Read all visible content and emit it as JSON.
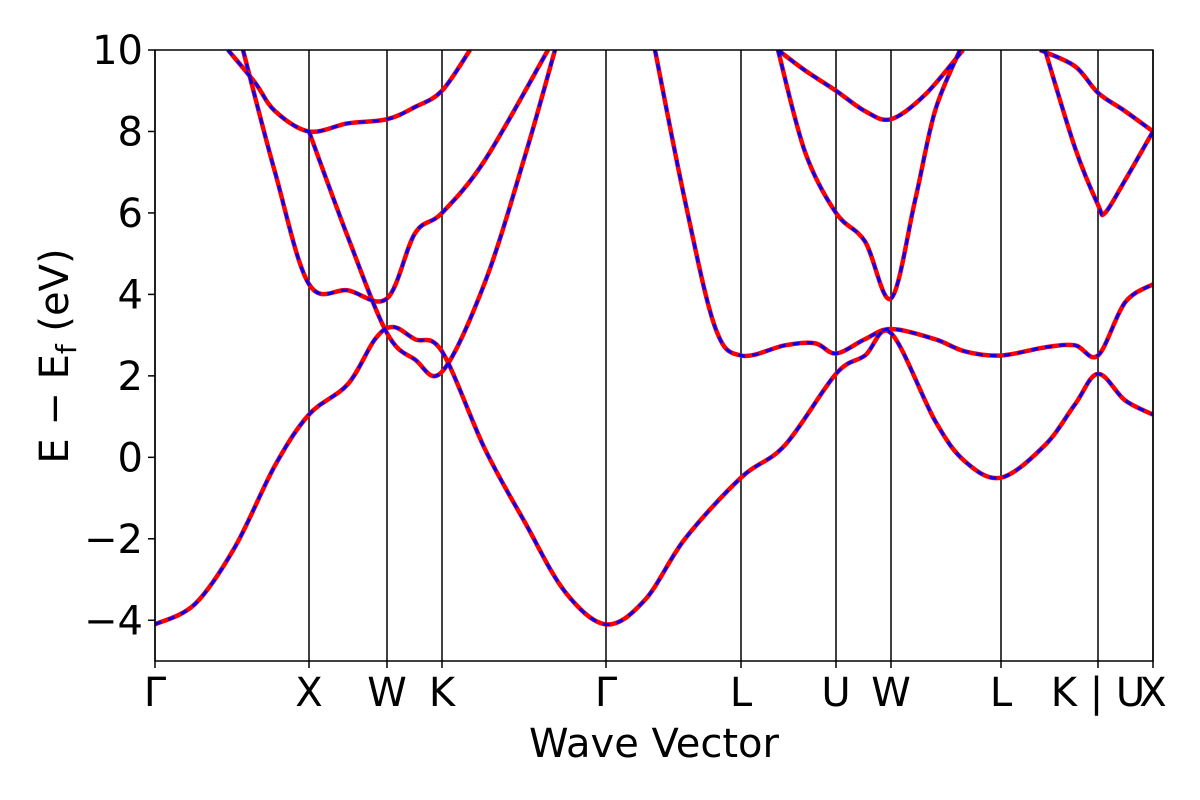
{
  "chart_data": {
    "type": "line",
    "xlabel": "Wave Vector",
    "ylabel": {
      "main": "E − E",
      "sub": "f",
      "unit": "(eV)"
    },
    "xlim": [
      0,
      9.98
    ],
    "ylim": [
      -5,
      10
    ],
    "xticks": [
      {
        "value": 0,
        "label": "Γ"
      },
      {
        "value": 1.54,
        "label": "X"
      },
      {
        "value": 2.32,
        "label": "W"
      },
      {
        "value": 2.87,
        "label": "K"
      },
      {
        "value": 4.51,
        "label": "Γ"
      },
      {
        "value": 5.86,
        "label": "L"
      },
      {
        "value": 6.81,
        "label": "U"
      },
      {
        "value": 7.36,
        "label": "W"
      },
      {
        "value": 8.46,
        "label": "L"
      },
      {
        "value": 9.43,
        "label": "K | U"
      },
      {
        "value": 9.98,
        "label": "X"
      }
    ],
    "yticks": [
      {
        "value": -4,
        "label": "−4"
      },
      {
        "value": -2,
        "label": "−2"
      },
      0,
      2,
      4,
      6,
      8,
      10
    ],
    "xgrid": true,
    "overlays": [
      {
        "color": "#ff0000",
        "dashed": false
      },
      {
        "color": "#0000ff",
        "dashed": true
      }
    ],
    "series": [
      {
        "x": [
          0,
          0.4,
          0.8,
          1.2,
          1.54,
          1.93,
          2.2,
          2.38,
          2.6,
          2.87,
          3.3,
          3.7,
          4.1,
          4.51,
          4.9,
          5.3,
          5.86,
          6.3,
          6.81,
          7.1,
          7.36,
          7.8,
          8.1,
          8.46,
          8.9,
          9.2,
          9.43,
          9.7,
          9.98
        ],
        "values": [
          -4.1,
          -3.6,
          -2.2,
          -0.2,
          1.05,
          1.8,
          2.9,
          3.2,
          2.9,
          2.6,
          0.2,
          -1.6,
          -3.3,
          -4.1,
          -3.5,
          -2.0,
          -0.5,
          0.3,
          2.05,
          2.5,
          3.05,
          0.9,
          -0.1,
          -0.5,
          0.3,
          1.3,
          2.05,
          1.4,
          1.05
        ]
      },
      {
        "x": [
          0.88,
          1.2,
          1.54,
          1.93,
          2.32,
          2.6,
          2.87,
          3.3,
          3.93
        ],
        "values": [
          10,
          7.0,
          4.25,
          4.1,
          3.9,
          5.5,
          6.0,
          7.3,
          10
        ]
      },
      {
        "x": [
          0.73,
          1.0,
          1.2,
          1.54,
          1.93,
          2.32,
          2.6,
          2.87,
          3.15
        ],
        "values": [
          10,
          9.2,
          8.5,
          8.0,
          8.2,
          8.3,
          8.6,
          9.0,
          10
        ]
      },
      {
        "x": [
          1.54,
          1.93,
          2.32,
          2.6,
          2.87,
          3.3,
          3.7,
          4.0
        ],
        "values": [
          8.0,
          5.4,
          3.05,
          2.4,
          2.1,
          4.3,
          7.4,
          10
        ]
      },
      {
        "x": [
          5.0,
          5.3,
          5.6,
          5.86,
          6.3,
          6.6,
          6.81,
          7.1,
          7.36,
          7.8,
          8.1,
          8.46,
          8.9,
          9.2,
          9.43,
          9.7,
          9.98
        ],
        "values": [
          10,
          6.3,
          3.2,
          2.5,
          2.75,
          2.8,
          2.55,
          2.9,
          3.15,
          2.9,
          2.6,
          2.5,
          2.7,
          2.75,
          2.5,
          3.8,
          4.25
        ]
      },
      {
        "x": [
          6.23,
          6.5,
          6.81,
          7.1,
          7.36,
          7.7,
          8.08
        ],
        "values": [
          10,
          9.5,
          9.0,
          8.5,
          8.3,
          8.9,
          10
        ]
      },
      {
        "x": [
          6.23,
          6.5,
          6.81,
          7.1,
          7.36,
          7.6,
          7.8,
          8.05
        ],
        "values": [
          10,
          7.5,
          6.0,
          5.3,
          3.9,
          6.3,
          8.5,
          10
        ]
      },
      {
        "x": [
          8.85,
          9.2,
          9.43,
          9.7,
          9.98
        ],
        "values": [
          10,
          9.6,
          8.95,
          8.5,
          8.0
        ]
      },
      {
        "x": [
          8.9,
          9.2,
          9.43,
          9.5,
          9.7,
          9.98
        ],
        "values": [
          10,
          7.6,
          6.2,
          6.0,
          6.8,
          8.0
        ]
      }
    ]
  }
}
